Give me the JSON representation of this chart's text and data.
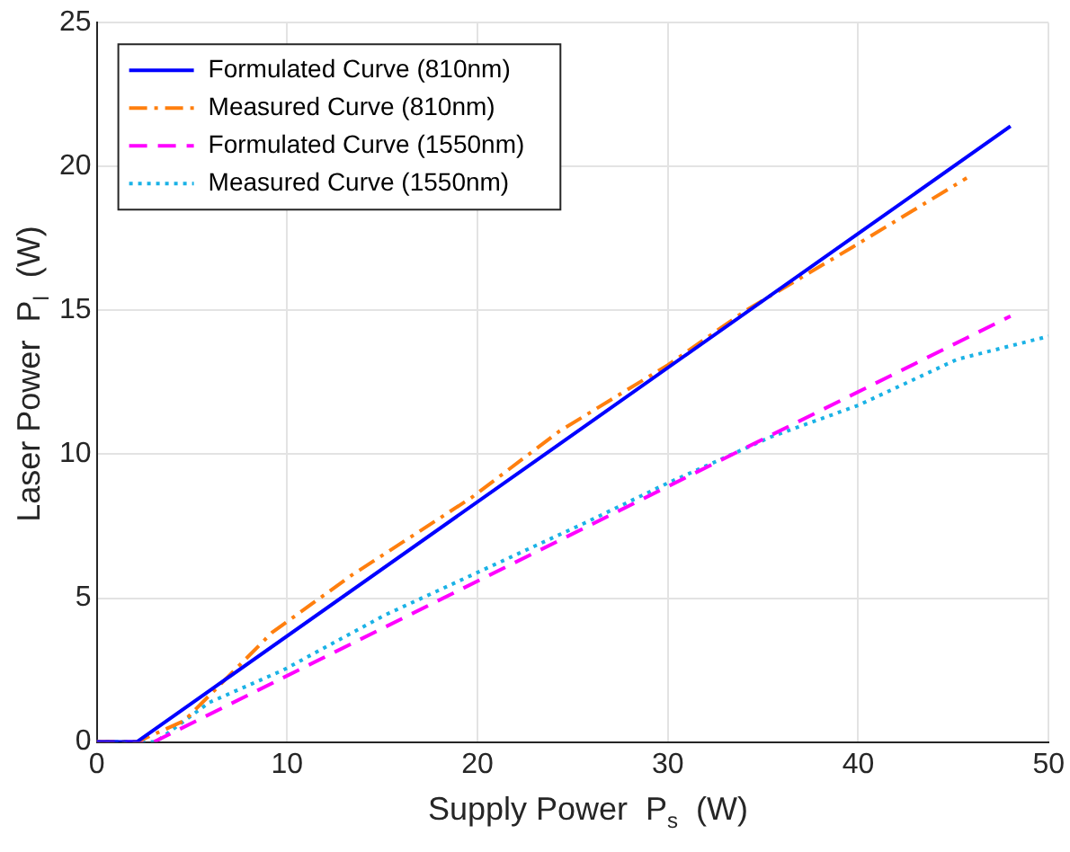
{
  "chart_data": {
    "type": "line",
    "xlabel": "Supply Power  P$_{s}$  (W)",
    "ylabel": "Laser Power  P$_{l}$  (W)",
    "xlim": [
      0,
      50
    ],
    "xticks": [
      0,
      10,
      20,
      30,
      40,
      50
    ],
    "ylim": [
      0,
      25
    ],
    "yticks": [
      0,
      5,
      10,
      15,
      20,
      25
    ],
    "grid": true,
    "legend": "top left",
    "marker": "none",
    "series": [
      {
        "name": "Formulated Curve (810nm)",
        "color": "#0000ff",
        "line_style": "solid",
        "x": [
          0,
          2.1,
          48
        ],
        "values": [
          0,
          0,
          21.4
        ]
      },
      {
        "name": "Measured Curve (810nm)",
        "color": "#ff7f0e",
        "line_style": "dashdot",
        "x": [
          0,
          2.1,
          4.6,
          9.2,
          13.4,
          19.7,
          24.3,
          30,
          34.1,
          39.7,
          45.7
        ],
        "values": [
          0,
          0,
          0.74,
          3.8,
          5.8,
          8.5,
          10.8,
          13.1,
          15,
          17.2,
          19.6
        ]
      },
      {
        "name": "Formulated Curve (1550nm)",
        "color": "#ff00ff",
        "line_style": "dashed",
        "x": [
          0,
          3,
          48
        ],
        "values": [
          0,
          0,
          14.8
        ]
      },
      {
        "name": "Measured Curve (1550nm)",
        "color": "#1ab2e6",
        "line_style": "dotted",
        "x": [
          0,
          3.1,
          5.9,
          9.8,
          15.1,
          19.7,
          25.6,
          30,
          35.4,
          40,
          45.2,
          50
        ],
        "values": [
          0,
          0,
          1.37,
          2.5,
          4.4,
          5.8,
          7.6,
          9,
          10.6,
          11.7,
          13.3,
          14.1
        ]
      }
    ]
  }
}
